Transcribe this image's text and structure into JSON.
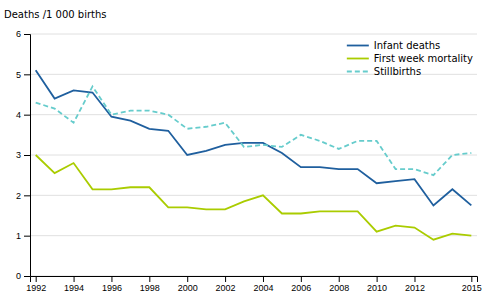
{
  "chart_data": {
    "type": "line",
    "ylabel": "Deaths /1 000 births",
    "x": [
      1992,
      1993,
      1994,
      1995,
      1996,
      1997,
      1998,
      1999,
      2000,
      2001,
      2002,
      2003,
      2004,
      2005,
      2006,
      2007,
      2008,
      2009,
      2010,
      2011,
      2012,
      2013,
      2014,
      2015
    ],
    "series": [
      {
        "name": "Infant deaths",
        "color": "#1F5F9E",
        "line_style": "solid",
        "values": [
          5.1,
          4.4,
          4.6,
          4.55,
          3.95,
          3.85,
          3.65,
          3.6,
          3.0,
          3.1,
          3.25,
          3.3,
          3.3,
          3.05,
          2.7,
          2.7,
          2.65,
          2.65,
          2.3,
          2.35,
          2.4,
          1.75,
          2.15,
          1.75
        ]
      },
      {
        "name": "First week mortality",
        "color": "#AACC00",
        "line_style": "solid",
        "values": [
          3.0,
          2.55,
          2.8,
          2.15,
          2.15,
          2.2,
          2.2,
          1.7,
          1.7,
          1.65,
          1.65,
          1.85,
          2.0,
          1.55,
          1.55,
          1.6,
          1.6,
          1.6,
          1.1,
          1.25,
          1.2,
          0.9,
          1.05,
          1.0
        ]
      },
      {
        "name": "Stillbirths",
        "color": "#66CCCC",
        "line_style": "dashed",
        "values": [
          4.3,
          4.15,
          3.8,
          4.7,
          4.0,
          4.1,
          4.1,
          4.0,
          3.65,
          3.7,
          3.8,
          3.2,
          3.25,
          3.2,
          3.5,
          3.35,
          3.15,
          3.35,
          3.35,
          2.65,
          2.65,
          2.5,
          3.0,
          3.05
        ]
      }
    ],
    "xlim": [
      1991.7,
      2015.3
    ],
    "xticks": [
      1992,
      1994,
      1996,
      1998,
      2000,
      2002,
      2004,
      2006,
      2008,
      2010,
      2012,
      2015
    ],
    "ylim": [
      0,
      6
    ],
    "yticks": [
      0,
      1,
      2,
      3,
      4,
      5,
      6
    ],
    "grid": true,
    "legend": "upper right"
  }
}
